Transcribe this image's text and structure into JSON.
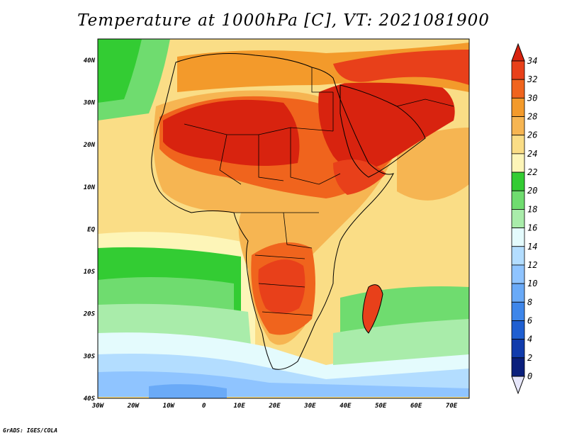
{
  "title": "Temperature at 1000hPa [C], VT: 2021081900",
  "credit": "GrADS: IGES/COLA",
  "variable": "Temperature",
  "level": "1000hPa",
  "units": "C",
  "valid_time": "2021081900",
  "axes": {
    "lon_ticks": [
      "30W",
      "20W",
      "10W",
      "0",
      "10E",
      "20E",
      "30E",
      "40E",
      "50E",
      "60E",
      "70E"
    ],
    "lat_ticks": [
      "40N",
      "30N",
      "20N",
      "10N",
      "EQ",
      "10S",
      "20S",
      "30S",
      "40S"
    ],
    "lon_range": [
      -30,
      75
    ],
    "lat_range": [
      -40,
      45
    ]
  },
  "colorbar": {
    "labels": [
      "34",
      "32",
      "30",
      "28",
      "26",
      "24",
      "22",
      "20",
      "18",
      "16",
      "14",
      "12",
      "10",
      "8",
      "6",
      "4",
      "2",
      "0"
    ],
    "colors": [
      "#d8230f",
      "#e8401a",
      "#f0641d",
      "#f39a2b",
      "#f6b552",
      "#fadd86",
      "#fdf5b8",
      "#33cc33",
      "#6fdc6f",
      "#a9ecaa",
      "#e4fbfd",
      "#b3ddff",
      "#8fc4ff",
      "#6aaaf7",
      "#3e86ea",
      "#1f5fd1",
      "#103bac",
      "#0a1f7c",
      "#e6e6fa"
    ]
  },
  "regions": [
    {
      "name": "sahara-hot-core",
      "level": "34+"
    },
    {
      "name": "arabia-hot-core",
      "level": "34+"
    },
    {
      "name": "southern-africa-warm",
      "level": "32"
    },
    {
      "name": "atlantic-south-cool",
      "level": "12"
    }
  ]
}
